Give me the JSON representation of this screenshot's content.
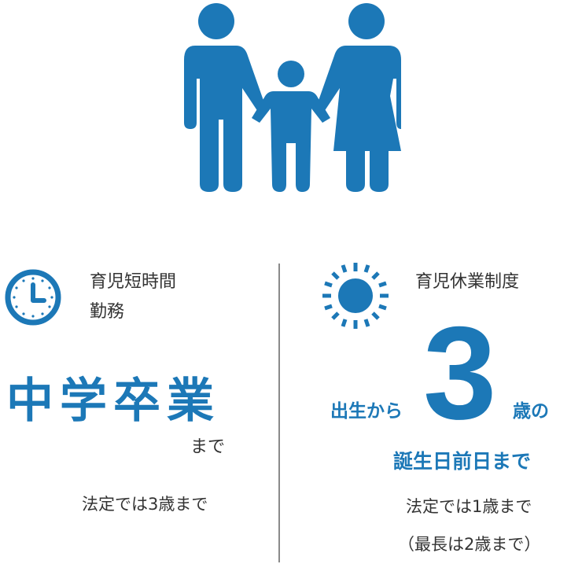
{
  "colors": {
    "accent": "#1c78b7",
    "text": "#333333",
    "divider": "#8a8a8a"
  },
  "icons": {
    "family": "family-icon",
    "clock": "clock-icon",
    "sun": "sun-icon"
  },
  "left": {
    "heading_line1": "育児短時間",
    "heading_line2": "勤務",
    "big_text": "中学卒業",
    "made": "まで",
    "note": "法定では3歳まで"
  },
  "right": {
    "heading": "育児休業制度",
    "from": "出生から",
    "number": "3",
    "age": "歳の",
    "birthday": "誕生日前日まで",
    "note1": "法定では1歳まで",
    "note2": "（最長は2歳まで）"
  }
}
